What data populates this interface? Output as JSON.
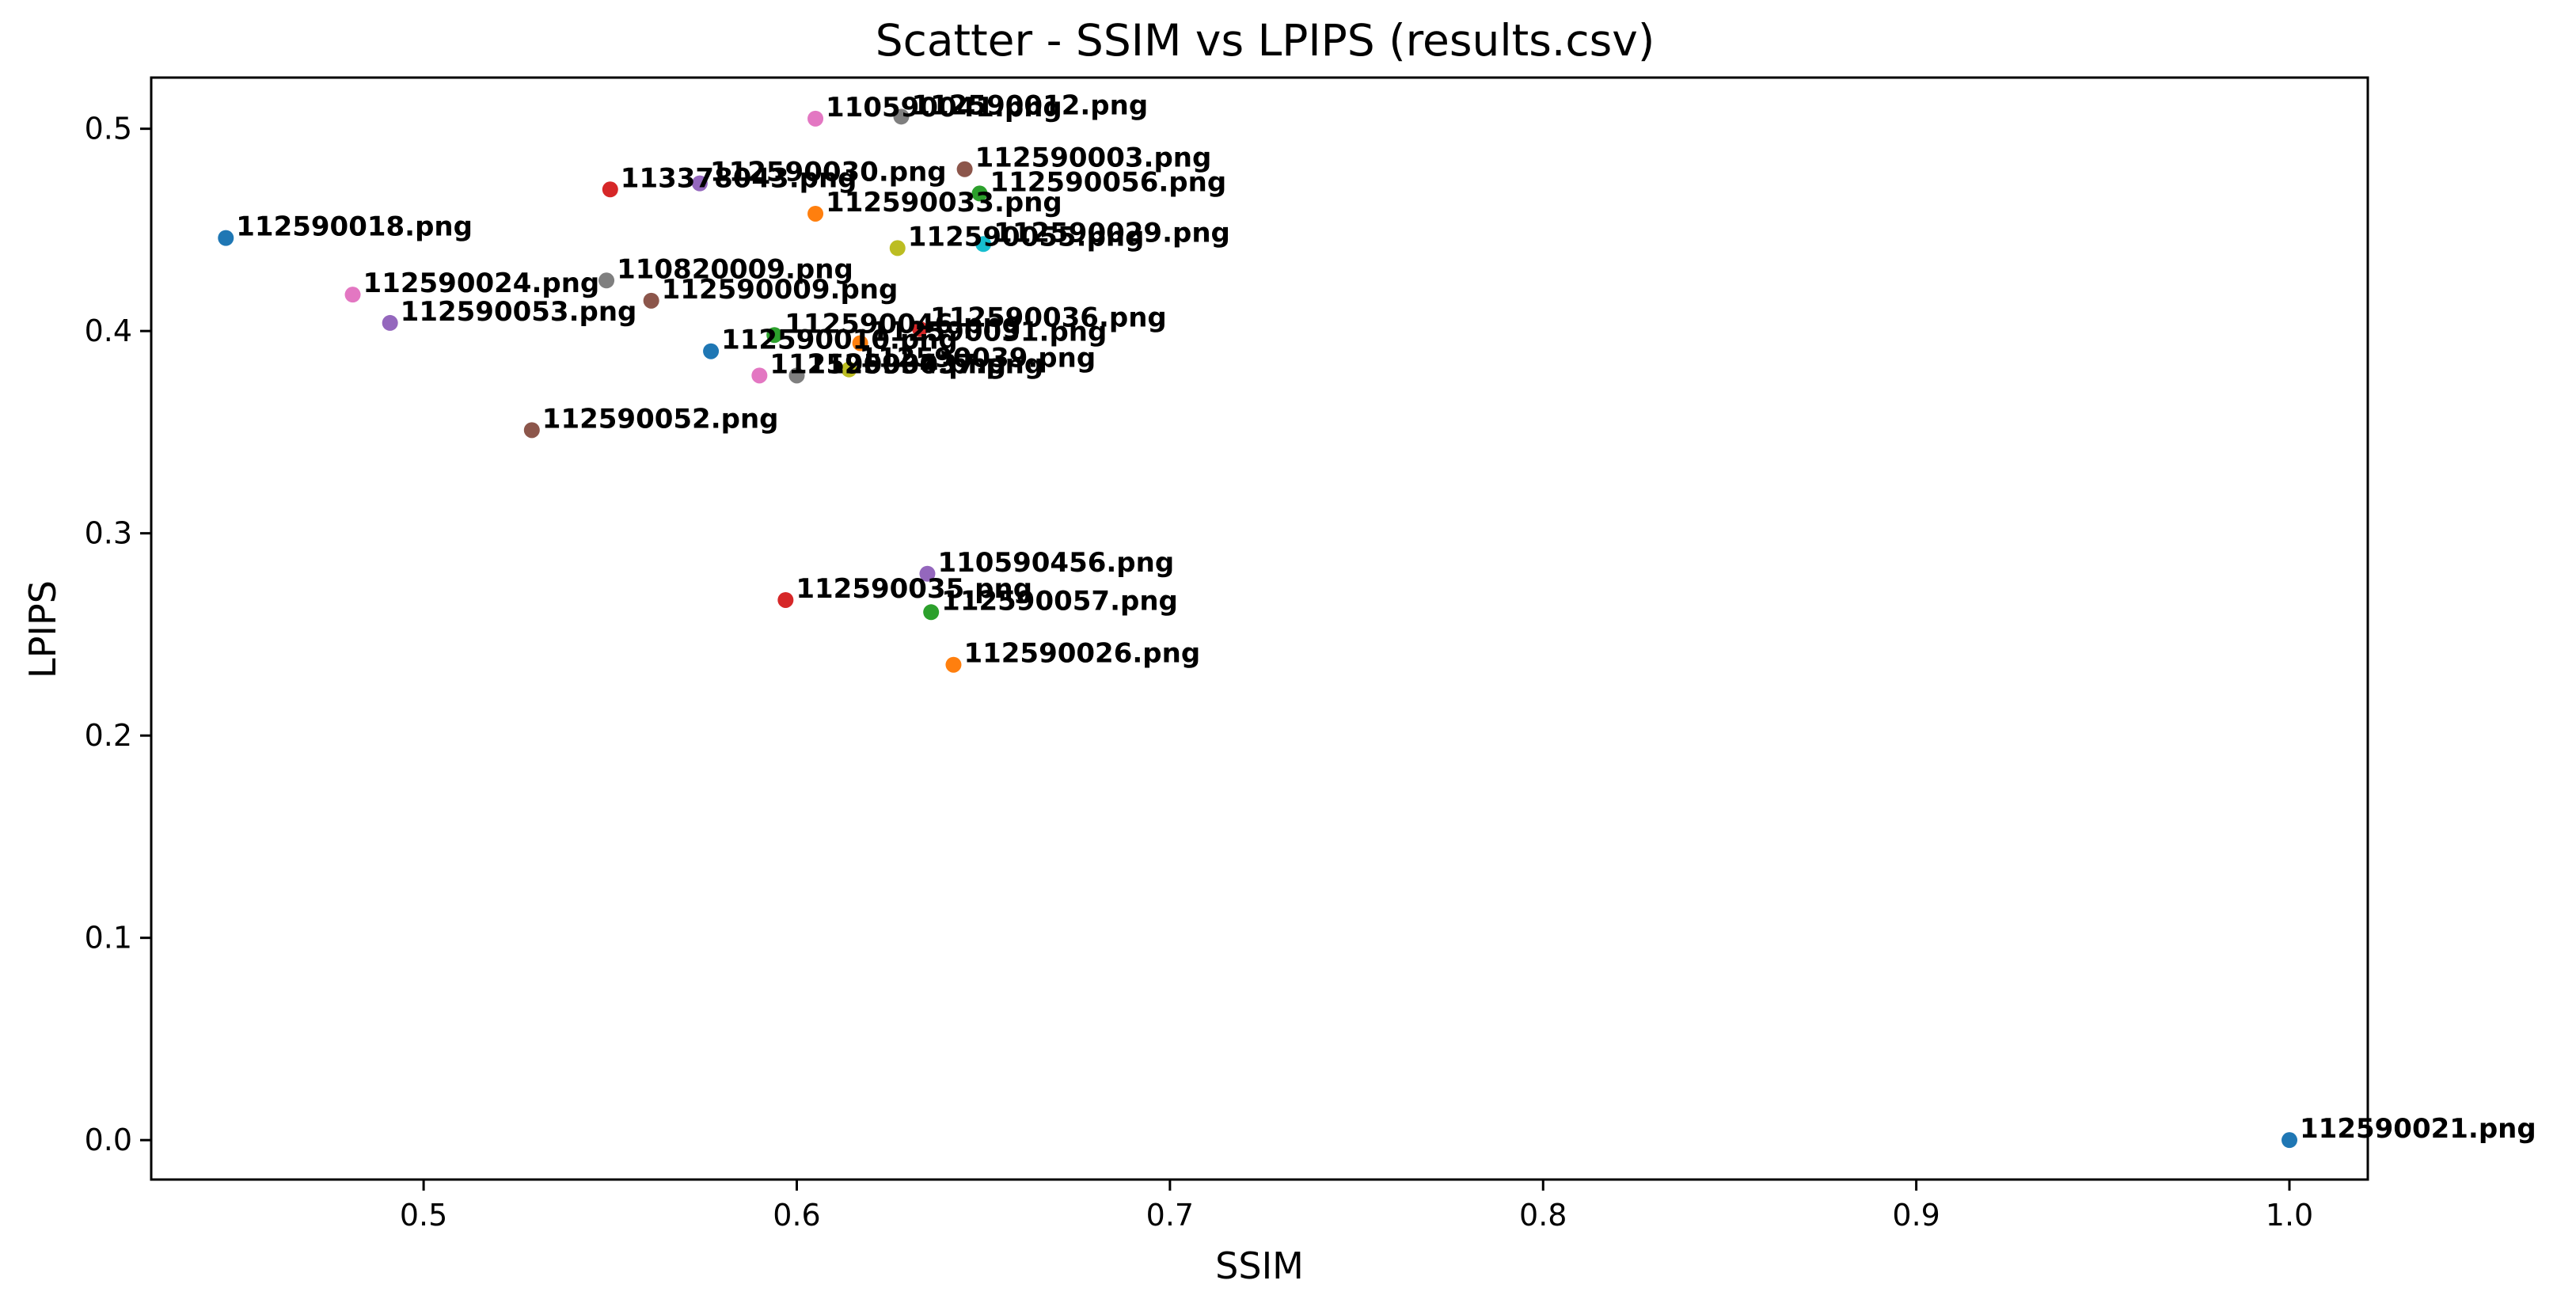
{
  "chart_data": {
    "type": "scatter",
    "title": "Scatter - SSIM vs LPIPS (results.csv)",
    "xlabel": "SSIM",
    "ylabel": "LPIPS",
    "xlim": [
      0.427,
      1.021
    ],
    "ylim": [
      -0.0195,
      0.5253
    ],
    "xticks": [
      "0.5",
      "0.6",
      "0.7",
      "0.8",
      "0.9",
      "1.0"
    ],
    "yticks": [
      "0.0",
      "0.1",
      "0.2",
      "0.3",
      "0.4",
      "0.5"
    ],
    "grid": false,
    "points": [
      {
        "label": "112590018.png",
        "x": 0.447,
        "y": 0.446,
        "color": "#1f77b4"
      },
      {
        "label": "112590024.png",
        "x": 0.481,
        "y": 0.418,
        "color": "#e377c2"
      },
      {
        "label": "112590053.png",
        "x": 0.491,
        "y": 0.404,
        "color": "#9467bd"
      },
      {
        "label": "112590052.png",
        "x": 0.529,
        "y": 0.351,
        "color": "#8c564b"
      },
      {
        "label": "110820009.png",
        "x": 0.549,
        "y": 0.425,
        "color": "#7f7f7f"
      },
      {
        "label": "113378043.png",
        "x": 0.55,
        "y": 0.47,
        "color": "#d62728"
      },
      {
        "label": "112590009.png",
        "x": 0.561,
        "y": 0.415,
        "color": "#8c564b"
      },
      {
        "label": "112590030.png",
        "x": 0.574,
        "y": 0.473,
        "color": "#9467bd"
      },
      {
        "label": "112590010.png",
        "x": 0.577,
        "y": 0.39,
        "color": "#1f77b4"
      },
      {
        "label": "112590034.png",
        "x": 0.59,
        "y": 0.378,
        "color": "#e377c2"
      },
      {
        "label": "112590046.png",
        "x": 0.594,
        "y": 0.398,
        "color": "#2ca02c"
      },
      {
        "label": "112590035.png",
        "x": 0.597,
        "y": 0.267,
        "color": "#d62728"
      },
      {
        "label": "112590037.png",
        "x": 0.6,
        "y": 0.378,
        "color": "#7f7f7f"
      },
      {
        "label": "110590041.png",
        "x": 0.605,
        "y": 0.505,
        "color": "#e377c2"
      },
      {
        "label": "112590033.png",
        "x": 0.605,
        "y": 0.458,
        "color": "#ff7f0e"
      },
      {
        "label": "112590039.png",
        "x": 0.614,
        "y": 0.381,
        "color": "#bcbd22"
      },
      {
        "label": "112590031.png",
        "x": 0.617,
        "y": 0.394,
        "color": "#ff7f0e"
      },
      {
        "label": "112590055.png",
        "x": 0.627,
        "y": 0.441,
        "color": "#bcbd22"
      },
      {
        "label": "112590012.png",
        "x": 0.628,
        "y": 0.506,
        "color": "#7f7f7f"
      },
      {
        "label": "112590036.png",
        "x": 0.633,
        "y": 0.401,
        "color": "#d62728"
      },
      {
        "label": "110590456.png",
        "x": 0.635,
        "y": 0.28,
        "color": "#9467bd"
      },
      {
        "label": "112590057.png",
        "x": 0.636,
        "y": 0.261,
        "color": "#2ca02c"
      },
      {
        "label": "112590026.png",
        "x": 0.642,
        "y": 0.235,
        "color": "#ff7f0e"
      },
      {
        "label": "112590003.png",
        "x": 0.645,
        "y": 0.48,
        "color": "#8c564b"
      },
      {
        "label": "112590056.png",
        "x": 0.649,
        "y": 0.468,
        "color": "#2ca02c"
      },
      {
        "label": "112590029.png",
        "x": 0.65,
        "y": 0.443,
        "color": "#17becf"
      },
      {
        "label": "112590021.png",
        "x": 1.0,
        "y": 0.0,
        "color": "#1f77b4"
      }
    ]
  }
}
